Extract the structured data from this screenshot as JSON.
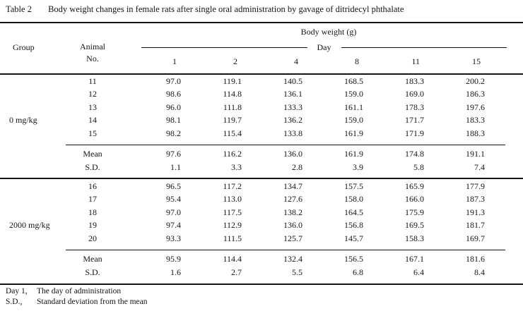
{
  "title": {
    "label": "Table 2",
    "text": "Body weight changes in female rats after single oral administration by gavage of ditridecyl phthalate"
  },
  "header": {
    "body_weight": "Body weight (g)",
    "group": "Group",
    "animal_line1": "Animal",
    "animal_line2": "No.",
    "day_label": "Day",
    "days": [
      "1",
      "2",
      "4",
      "8",
      "11",
      "15"
    ]
  },
  "groups": [
    {
      "label": "0 mg/kg",
      "rows": [
        {
          "no": "11",
          "values": [
            "97.0",
            "119.1",
            "140.5",
            "168.5",
            "183.3",
            "200.2"
          ]
        },
        {
          "no": "12",
          "values": [
            "98.6",
            "114.8",
            "136.1",
            "159.0",
            "169.0",
            "186.3"
          ]
        },
        {
          "no": "13",
          "values": [
            "96.0",
            "111.8",
            "133.3",
            "161.1",
            "178.3",
            "197.6"
          ]
        },
        {
          "no": "14",
          "values": [
            "98.1",
            "119.7",
            "136.2",
            "159.0",
            "171.7",
            "183.3"
          ]
        },
        {
          "no": "15",
          "values": [
            "98.2",
            "115.4",
            "133.8",
            "161.9",
            "171.9",
            "188.3"
          ]
        }
      ],
      "mean": {
        "label": "Mean",
        "values": [
          "97.6",
          "116.2",
          "136.0",
          "161.9",
          "174.8",
          "191.1"
        ]
      },
      "sd": {
        "label": "S.D.",
        "values": [
          "1.1",
          "3.3",
          "2.8",
          "3.9",
          "5.8",
          "7.4"
        ]
      }
    },
    {
      "label": "2000 mg/kg",
      "rows": [
        {
          "no": "16",
          "values": [
            "96.5",
            "117.2",
            "134.7",
            "157.5",
            "165.9",
            "177.9"
          ]
        },
        {
          "no": "17",
          "values": [
            "95.4",
            "113.0",
            "127.6",
            "158.0",
            "166.0",
            "187.3"
          ]
        },
        {
          "no": "18",
          "values": [
            "97.0",
            "117.5",
            "138.2",
            "164.5",
            "175.9",
            "191.3"
          ]
        },
        {
          "no": "19",
          "values": [
            "97.4",
            "112.9",
            "136.0",
            "156.8",
            "169.5",
            "181.7"
          ]
        },
        {
          "no": "20",
          "values": [
            "93.3",
            "111.5",
            "125.7",
            "145.7",
            "158.3",
            "169.7"
          ]
        }
      ],
      "mean": {
        "label": "Mean",
        "values": [
          "95.9",
          "114.4",
          "132.4",
          "156.5",
          "167.1",
          "181.6"
        ]
      },
      "sd": {
        "label": "S.D.",
        "values": [
          "1.6",
          "2.7",
          "5.5",
          "6.8",
          "6.4",
          "8.4"
        ]
      }
    }
  ],
  "footnotes": [
    {
      "term": "Day 1,",
      "definition": "The day of administration"
    },
    {
      "term": "S.D.,",
      "definition": "Standard deviation from the mean"
    }
  ]
}
